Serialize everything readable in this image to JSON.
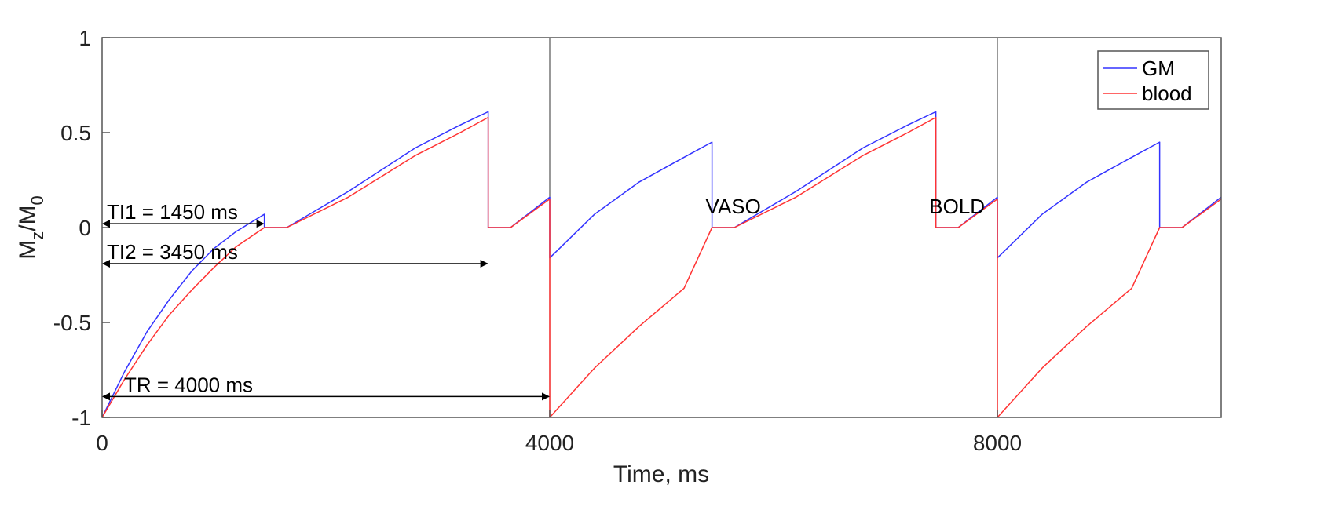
{
  "chart_data": {
    "type": "line",
    "xlabel": "Time, ms",
    "ylabel": "Mz/M0",
    "ylabel_parts": {
      "main1": "M",
      "sub1": "z",
      "slash": "/",
      "main2": "M",
      "sub2": "0"
    },
    "xlim": [
      0,
      10000
    ],
    "ylim": [
      -1,
      1
    ],
    "xticks": [
      0,
      4000,
      8000
    ],
    "xtick_labels": [
      "0",
      "4000",
      "8000"
    ],
    "yticks": [
      -1,
      -0.5,
      0,
      0.5,
      1
    ],
    "ytick_labels": [
      "-1",
      "-0.5",
      "0",
      "0.5",
      "1"
    ],
    "grid": "vertical only at x ticks",
    "legend": {
      "placement": "top-right",
      "entries": [
        "GM",
        "blood"
      ]
    },
    "colors": {
      "GM": "#3333ff",
      "blood": "#ff3333",
      "axes": "#555555"
    },
    "series": [
      {
        "name": "GM",
        "points": [
          [
            0,
            -1
          ],
          [
            200,
            -0.76
          ],
          [
            400,
            -0.55
          ],
          [
            600,
            -0.38
          ],
          [
            800,
            -0.23
          ],
          [
            1000,
            -0.11
          ],
          [
            1200,
            -0.02
          ],
          [
            1450,
            0.07
          ],
          [
            1450,
            0.0
          ],
          [
            1650,
            0.0
          ],
          [
            2200,
            0.19
          ],
          [
            2800,
            0.42
          ],
          [
            3200,
            0.54
          ],
          [
            3450,
            0.61
          ],
          [
            3450,
            0.0
          ],
          [
            3650,
            0.0
          ],
          [
            4000,
            0.16
          ],
          [
            4000,
            -0.16
          ],
          [
            4400,
            0.07
          ],
          [
            4800,
            0.24
          ],
          [
            5200,
            0.37
          ],
          [
            5450,
            0.45
          ],
          [
            5450,
            0.0
          ],
          [
            5650,
            0.0
          ],
          [
            6200,
            0.19
          ],
          [
            6800,
            0.42
          ],
          [
            7200,
            0.54
          ],
          [
            7450,
            0.61
          ],
          [
            7450,
            0.0
          ],
          [
            7650,
            0.0
          ],
          [
            8000,
            0.16
          ],
          [
            8000,
            -0.16
          ],
          [
            8400,
            0.07
          ],
          [
            8800,
            0.24
          ],
          [
            9200,
            0.37
          ],
          [
            9450,
            0.45
          ],
          [
            9450,
            0.0
          ],
          [
            9650,
            0.0
          ],
          [
            10000,
            0.16
          ]
        ]
      },
      {
        "name": "blood",
        "points": [
          [
            0,
            -1
          ],
          [
            200,
            -0.8
          ],
          [
            400,
            -0.62
          ],
          [
            600,
            -0.46
          ],
          [
            800,
            -0.33
          ],
          [
            1000,
            -0.21
          ],
          [
            1200,
            -0.1
          ],
          [
            1450,
            0.0
          ],
          [
            1650,
            0.0
          ],
          [
            2200,
            0.16
          ],
          [
            2800,
            0.38
          ],
          [
            3200,
            0.5
          ],
          [
            3450,
            0.58
          ],
          [
            3450,
            0.0
          ],
          [
            3650,
            0.0
          ],
          [
            4000,
            0.15
          ],
          [
            4000,
            -1.0
          ],
          [
            4400,
            -0.74
          ],
          [
            4800,
            -0.52
          ],
          [
            5200,
            -0.32
          ],
          [
            5450,
            -0.0
          ],
          [
            5650,
            0.0
          ],
          [
            6200,
            0.16
          ],
          [
            6800,
            0.38
          ],
          [
            7200,
            0.5
          ],
          [
            7450,
            0.58
          ],
          [
            7450,
            0.0
          ],
          [
            7650,
            0.0
          ],
          [
            8000,
            0.15
          ],
          [
            8000,
            -1.0
          ],
          [
            8400,
            -0.74
          ],
          [
            8800,
            -0.52
          ],
          [
            9200,
            -0.32
          ],
          [
            9450,
            0.0
          ],
          [
            9650,
            0.0
          ],
          [
            10000,
            0.15
          ]
        ]
      }
    ],
    "annotations": [
      {
        "text": "TI1 = 1450 ms",
        "x_from": 0,
        "x_to": 1450,
        "y": 0.02
      },
      {
        "text": "TI2 = 3450 ms",
        "x_from": 0,
        "x_to": 3450,
        "y": -0.19
      },
      {
        "text": "TR = 4000 ms",
        "x_from": 0,
        "x_to": 4000,
        "y": -0.89
      },
      {
        "text": "VASO",
        "x": 5640,
        "y": 0.09
      },
      {
        "text": "BOLD",
        "x": 7640,
        "y": 0.09
      }
    ]
  }
}
